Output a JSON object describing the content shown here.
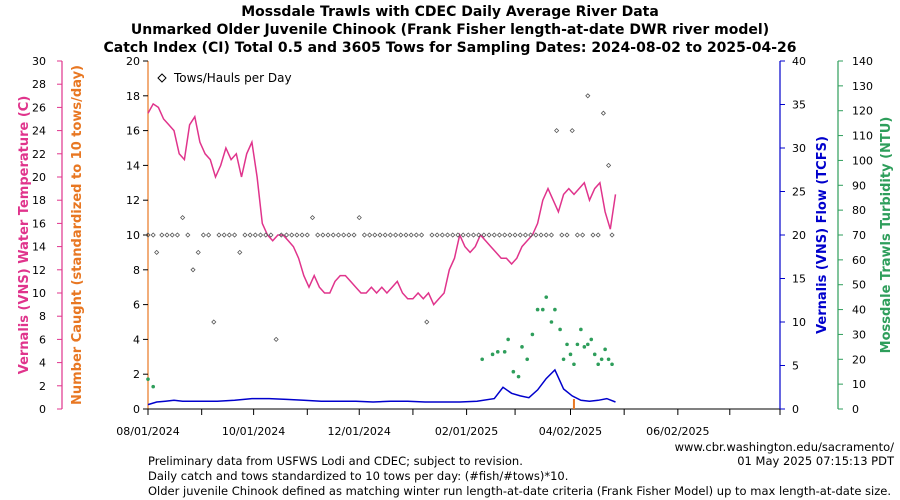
{
  "titles": [
    "Mossdale Trawls with CDEC Daily Average River Data",
    "Unmarked Older Juvenile Chinook (Frank Fisher length-at-date DWR river model)",
    "Catch Index (CI) Total 0.5 and 3605 Tows for Sampling Dates: 2024-08-02 to 2025-04-26"
  ],
  "credit": {
    "url": "www.cbr.washington.edu/sacramento/",
    "timestamp": "01 May 2025 07:15:13 PDT"
  },
  "footnotes": [
    "Preliminary data from USFWS Lodi and CDEC; subject to revision.",
    "Daily catch and tows standardized to 10 tows per day: (#fish/#tows)*10.",
    "Older juvenile Chinook defined as matching winter run length-at-date criteria (Frank Fisher Model) up to max length-at-date size."
  ],
  "colors": {
    "temperature": "#e0348c",
    "catch": "#e87722",
    "flow": "#0000cc",
    "turbidity": "#2e9e5b",
    "tows": "#555555"
  },
  "chart_data": {
    "type": "line",
    "x_start": "2024-08-01",
    "x_end": "2025-07-31",
    "x_tick_labels": [
      "08/01/2024",
      "10/01/2024",
      "12/01/2024",
      "02/01/2025",
      "04/02/2025",
      "06/02/2025"
    ],
    "x_tick_days": [
      0,
      61,
      122,
      184,
      244,
      306
    ],
    "x_minor_tick_days": [
      31,
      92,
      153,
      212,
      275,
      336,
      365
    ],
    "legend": {
      "label": "Tows/Hauls per Day",
      "symbol": "◇",
      "position": "top-left"
    },
    "axes": {
      "temperature": {
        "label": "Vernalis (VNS) Water Temperature (C)",
        "min": 0,
        "max": 30,
        "ticks": [
          0,
          2,
          4,
          6,
          8,
          10,
          12,
          14,
          16,
          18,
          20,
          22,
          24,
          26,
          28,
          30
        ]
      },
      "catch": {
        "label": "Number Caught (standardized to 10 tows/day)",
        "min": 0,
        "max": 20,
        "ticks": [
          0,
          2,
          4,
          6,
          8,
          10,
          12,
          14,
          16,
          18,
          20
        ]
      },
      "flow": {
        "label": "Vernalis (VNS) Flow (TCFS)",
        "min": 0,
        "max": 40,
        "ticks": [
          0,
          5,
          10,
          15,
          20,
          25,
          30,
          35,
          40
        ]
      },
      "turbidity": {
        "label": "Mossdale Trawls Turbidity (NTU)",
        "min": 0,
        "max": 140,
        "ticks": [
          0,
          10,
          20,
          30,
          40,
          50,
          60,
          70,
          80,
          90,
          100,
          110,
          120,
          130,
          140
        ]
      }
    },
    "temperature_series": {
      "day": [
        0,
        3,
        6,
        9,
        12,
        15,
        18,
        21,
        24,
        27,
        30,
        33,
        36,
        39,
        42,
        45,
        48,
        51,
        54,
        57,
        60,
        63,
        66,
        69,
        72,
        75,
        78,
        81,
        84,
        87,
        90,
        93,
        96,
        99,
        102,
        105,
        108,
        111,
        114,
        117,
        120,
        123,
        126,
        129,
        132,
        135,
        138,
        141,
        144,
        147,
        150,
        153,
        156,
        159,
        162,
        165,
        168,
        171,
        174,
        177,
        180,
        183,
        186,
        189,
        192,
        195,
        198,
        201,
        204,
        207,
        210,
        213,
        216,
        219,
        222,
        225,
        228,
        231,
        234,
        237,
        240,
        243,
        246,
        249,
        252,
        255,
        258,
        261,
        264,
        267,
        270
      ],
      "value": [
        25.5,
        26.3,
        26,
        25,
        24.5,
        24,
        22,
        21.5,
        24.5,
        25.2,
        23,
        22,
        21.5,
        20,
        21,
        22.5,
        21.5,
        22,
        20,
        22,
        23,
        20,
        16,
        15,
        14.5,
        15,
        15,
        14.5,
        14,
        13,
        11.5,
        10.5,
        11.5,
        10.5,
        10,
        10,
        11,
        11.5,
        11.5,
        11,
        10.5,
        10,
        10,
        10.5,
        10,
        10.5,
        10,
        10.5,
        11,
        10,
        9.5,
        9.5,
        10,
        9.5,
        10,
        9,
        9.5,
        10,
        12,
        13,
        15,
        14,
        13.5,
        14,
        15,
        14.5,
        14,
        13.5,
        13,
        13,
        12.5,
        13,
        14,
        14.5,
        15,
        16,
        18,
        19,
        18,
        17,
        18.5,
        19,
        18.5,
        19,
        19.5,
        18,
        19,
        19.5,
        17,
        15.5,
        18.5
      ]
    },
    "flow_series": {
      "day": [
        0,
        5,
        10,
        15,
        20,
        30,
        40,
        50,
        60,
        70,
        80,
        90,
        100,
        110,
        120,
        130,
        140,
        150,
        160,
        170,
        180,
        190,
        200,
        205,
        210,
        215,
        220,
        225,
        230,
        235,
        240,
        245,
        250,
        255,
        260,
        265,
        270
      ],
      "value": [
        0.5,
        0.8,
        0.9,
        1.0,
        0.9,
        0.9,
        0.9,
        1.0,
        1.2,
        1.2,
        1.1,
        1.0,
        0.9,
        0.9,
        0.9,
        0.8,
        0.9,
        0.9,
        0.8,
        0.8,
        0.8,
        0.9,
        1.2,
        2.5,
        1.8,
        1.5,
        1.3,
        2.2,
        3.5,
        4.5,
        2.3,
        1.5,
        1.0,
        0.9,
        1.0,
        1.2,
        0.8
      ]
    },
    "turbidity_points": {
      "day": [
        0,
        3,
        193,
        199,
        202,
        206,
        208,
        211,
        214,
        216,
        219,
        222,
        225,
        228,
        230,
        233,
        235,
        238,
        240,
        242,
        244,
        246,
        248,
        250,
        252,
        254,
        256,
        258,
        260,
        262,
        264,
        266,
        268
      ],
      "value": [
        12,
        9,
        20,
        22,
        23,
        23,
        28,
        15,
        13,
        25,
        20,
        30,
        40,
        40,
        45,
        35,
        40,
        32,
        20,
        26,
        22,
        18,
        26,
        32,
        25,
        26,
        28,
        22,
        18,
        20,
        24,
        20,
        18
      ]
    },
    "tows_points": {
      "day": [
        0,
        3,
        5,
        8,
        11,
        14,
        17,
        20,
        23,
        26,
        29,
        32,
        35,
        38,
        41,
        44,
        47,
        50,
        53,
        56,
        59,
        62,
        65,
        68,
        71,
        74,
        77,
        80,
        83,
        86,
        89,
        92,
        95,
        98,
        101,
        104,
        107,
        110,
        113,
        116,
        119,
        122,
        125,
        128,
        131,
        134,
        137,
        140,
        143,
        146,
        149,
        152,
        155,
        158,
        161,
        164,
        167,
        170,
        173,
        176,
        179,
        182,
        185,
        188,
        191,
        194,
        197,
        200,
        203,
        206,
        209,
        212,
        215,
        218,
        221,
        224,
        227,
        230,
        233,
        236,
        239,
        242,
        245,
        248,
        251,
        254,
        257,
        260,
        263,
        266,
        268
      ],
      "value": [
        10,
        10,
        9,
        10,
        10,
        10,
        10,
        11,
        10,
        8,
        9,
        10,
        10,
        5,
        10,
        10,
        10,
        10,
        9,
        10,
        10,
        10,
        10,
        10,
        10,
        4,
        10,
        10,
        10,
        10,
        10,
        10,
        11,
        10,
        10,
        10,
        10,
        10,
        10,
        10,
        10,
        11,
        10,
        10,
        10,
        10,
        10,
        10,
        10,
        10,
        10,
        10,
        10,
        10,
        5,
        10,
        10,
        10,
        10,
        10,
        10,
        10,
        10,
        10,
        10,
        10,
        10,
        10,
        10,
        10,
        10,
        10,
        10,
        10,
        10,
        10,
        10,
        10,
        10,
        16,
        10,
        10,
        16,
        10,
        10,
        18,
        10,
        10,
        17,
        14,
        10
      ]
    }
  }
}
